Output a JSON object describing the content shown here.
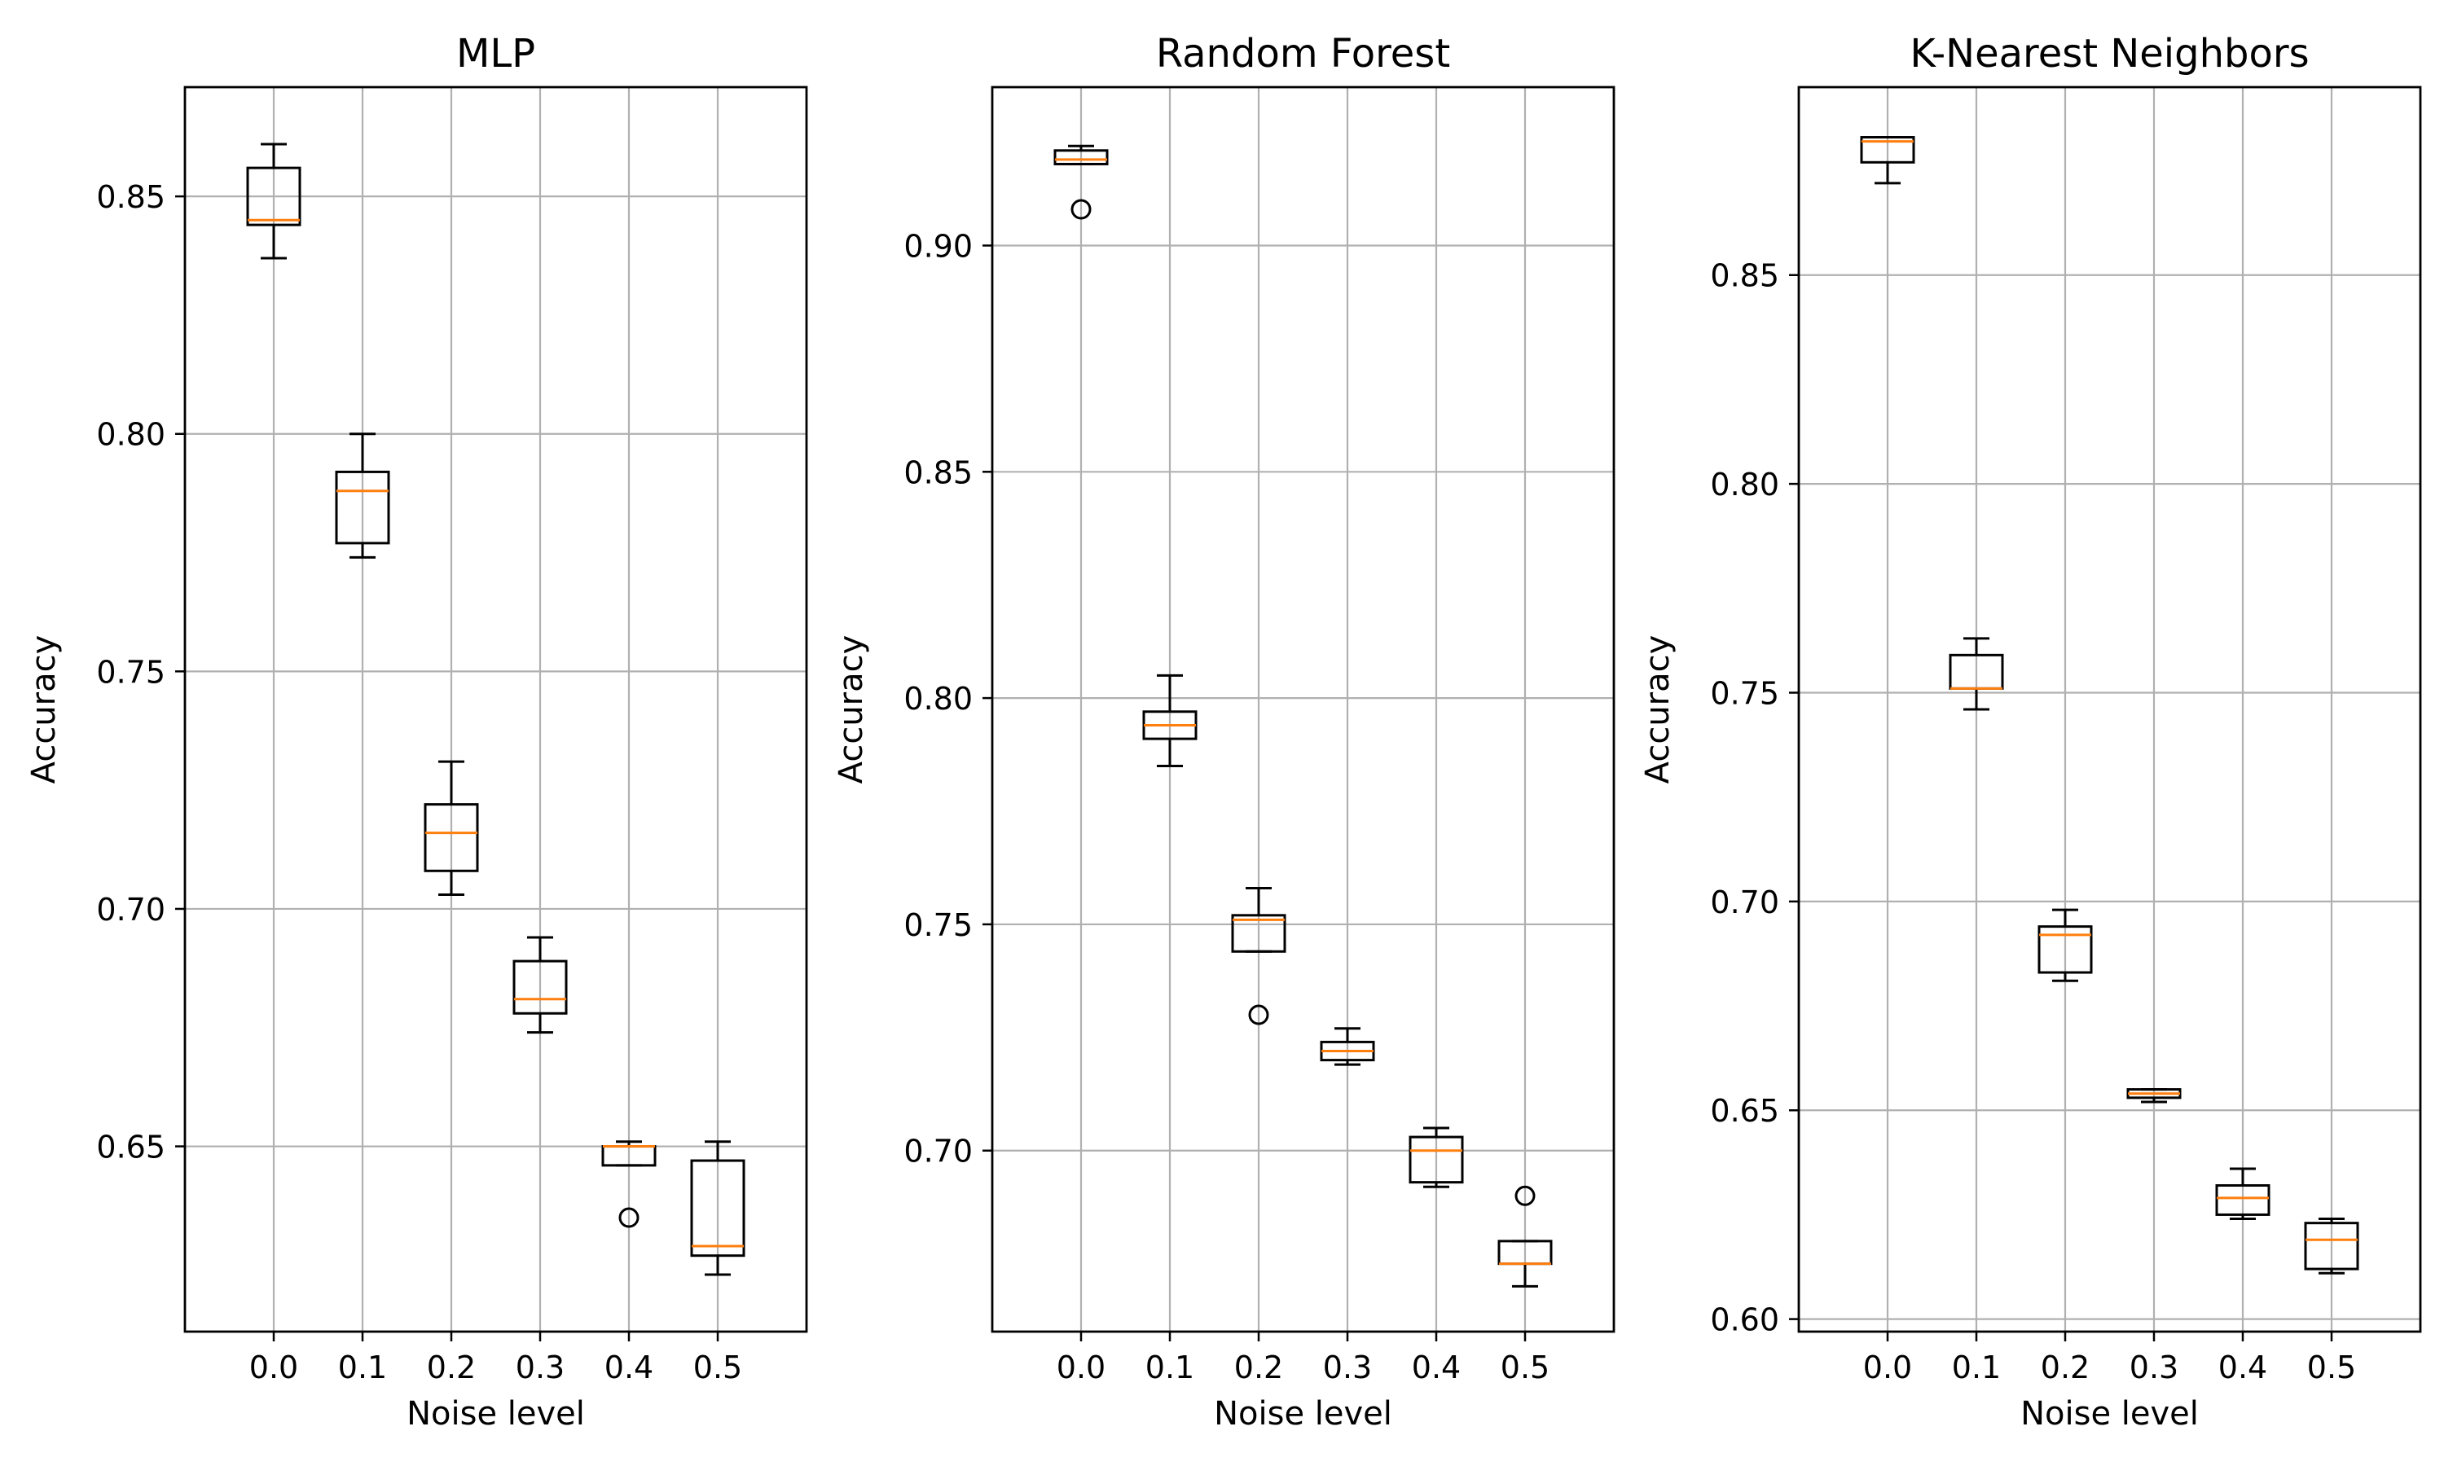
{
  "chart_data": [
    {
      "type": "box",
      "title": "MLP",
      "xlabel": "Noise level",
      "ylabel": "Accuracy",
      "categories": [
        "0.0",
        "0.1",
        "0.2",
        "0.3",
        "0.4",
        "0.5"
      ],
      "ylim": [
        0.611,
        0.873
      ],
      "yticks": [
        0.65,
        0.7,
        0.75,
        0.8,
        0.85
      ],
      "ytick_labels": [
        "0.65",
        "0.70",
        "0.75",
        "0.80",
        "0.85"
      ],
      "grid": true,
      "boxes": [
        {
          "whislo": 0.837,
          "q1": 0.844,
          "med": 0.845,
          "q3": 0.856,
          "whishi": 0.861,
          "fliers": []
        },
        {
          "whislo": 0.774,
          "q1": 0.777,
          "med": 0.788,
          "q3": 0.792,
          "whishi": 0.8,
          "fliers": []
        },
        {
          "whislo": 0.703,
          "q1": 0.708,
          "med": 0.716,
          "q3": 0.722,
          "whishi": 0.731,
          "fliers": []
        },
        {
          "whislo": 0.674,
          "q1": 0.678,
          "med": 0.681,
          "q3": 0.689,
          "whishi": 0.694,
          "fliers": []
        },
        {
          "whislo": 0.646,
          "q1": 0.646,
          "med": 0.65,
          "q3": 0.65,
          "whishi": 0.651,
          "fliers": [
            0.635
          ]
        },
        {
          "whislo": 0.623,
          "q1": 0.627,
          "med": 0.629,
          "q3": 0.647,
          "whishi": 0.651,
          "fliers": []
        }
      ]
    },
    {
      "type": "box",
      "title": "Random Forest",
      "xlabel": "Noise level",
      "ylabel": "Accuracy",
      "categories": [
        "0.0",
        "0.1",
        "0.2",
        "0.3",
        "0.4",
        "0.5"
      ],
      "ylim": [
        0.66,
        0.935
      ],
      "yticks": [
        0.7,
        0.75,
        0.8,
        0.85,
        0.9
      ],
      "ytick_labels": [
        "0.70",
        "0.75",
        "0.80",
        "0.85",
        "0.90"
      ],
      "grid": true,
      "boxes": [
        {
          "whislo": 0.918,
          "q1": 0.918,
          "med": 0.919,
          "q3": 0.921,
          "whishi": 0.922,
          "fliers": [
            0.908
          ]
        },
        {
          "whislo": 0.785,
          "q1": 0.791,
          "med": 0.794,
          "q3": 0.797,
          "whishi": 0.805,
          "fliers": []
        },
        {
          "whislo": 0.744,
          "q1": 0.744,
          "med": 0.751,
          "q3": 0.752,
          "whishi": 0.758,
          "fliers": [
            0.73
          ]
        },
        {
          "whislo": 0.719,
          "q1": 0.72,
          "med": 0.722,
          "q3": 0.724,
          "whishi": 0.727,
          "fliers": []
        },
        {
          "whislo": 0.692,
          "q1": 0.693,
          "med": 0.7,
          "q3": 0.703,
          "whishi": 0.705,
          "fliers": []
        },
        {
          "whislo": 0.67,
          "q1": 0.675,
          "med": 0.675,
          "q3": 0.68,
          "whishi": 0.68,
          "fliers": [
            0.69
          ]
        }
      ]
    },
    {
      "type": "box",
      "title": "K-Nearest Neighbors",
      "xlabel": "Noise level",
      "ylabel": "Accuracy",
      "categories": [
        "0.0",
        "0.1",
        "0.2",
        "0.3",
        "0.4",
        "0.5"
      ],
      "ylim": [
        0.597,
        0.895
      ],
      "yticks": [
        0.6,
        0.65,
        0.7,
        0.75,
        0.8,
        0.85
      ],
      "ytick_labels": [
        "0.60",
        "0.65",
        "0.70",
        "0.75",
        "0.80",
        "0.85"
      ],
      "grid": true,
      "boxes": [
        {
          "whislo": 0.872,
          "q1": 0.877,
          "med": 0.882,
          "q3": 0.883,
          "whishi": 0.883,
          "fliers": []
        },
        {
          "whislo": 0.746,
          "q1": 0.751,
          "med": 0.751,
          "q3": 0.759,
          "whishi": 0.763,
          "fliers": []
        },
        {
          "whislo": 0.681,
          "q1": 0.683,
          "med": 0.692,
          "q3": 0.694,
          "whishi": 0.698,
          "fliers": []
        },
        {
          "whislo": 0.652,
          "q1": 0.653,
          "med": 0.654,
          "q3": 0.655,
          "whishi": 0.655,
          "fliers": []
        },
        {
          "whislo": 0.624,
          "q1": 0.625,
          "med": 0.629,
          "q3": 0.632,
          "whishi": 0.636,
          "fliers": []
        },
        {
          "whislo": 0.611,
          "q1": 0.612,
          "med": 0.619,
          "q3": 0.623,
          "whishi": 0.624,
          "fliers": []
        }
      ]
    }
  ],
  "colors": {
    "box": "#000000",
    "median": "#ff7f0e",
    "grid": "#b0b0b0"
  }
}
